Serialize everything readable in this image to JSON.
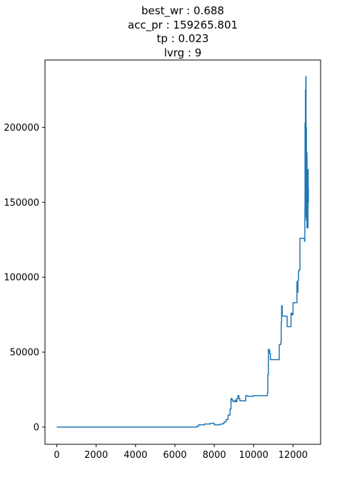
{
  "chart_data": {
    "type": "line",
    "title_lines": [
      "best_wr : 0.688",
      "acc_pr : 159265.801",
      "tp : 0.023",
      "lvrg : 9"
    ],
    "xlabel": "",
    "ylabel": "",
    "xlim": [
      -600,
      13400
    ],
    "ylim": [
      -11500,
      245000
    ],
    "x_ticks": [
      0,
      2000,
      4000,
      6000,
      8000,
      10000,
      12000
    ],
    "x_tick_labels": [
      "0",
      "2000",
      "4000",
      "6000",
      "8000",
      "10000",
      "12000"
    ],
    "y_ticks": [
      0,
      50000,
      100000,
      150000,
      200000
    ],
    "y_tick_labels": [
      "0",
      "50000",
      "100000",
      "150000",
      "200000"
    ],
    "grid": false,
    "series": [
      {
        "color": "#1f77b4",
        "x": [
          0,
          7000,
          7100,
          7200,
          7350,
          7500,
          7650,
          7800,
          7950,
          8000,
          8100,
          8300,
          8450,
          8500,
          8600,
          8700,
          8800,
          8850,
          8900,
          8950,
          9000,
          9050,
          9100,
          9150,
          9200,
          9250,
          9300,
          9500,
          9600,
          9650,
          9700,
          9900,
          10000,
          10400,
          10600,
          10700,
          10720,
          10750,
          10780,
          10800,
          10820,
          10850,
          10900,
          11000,
          11200,
          11300,
          11350,
          11380,
          11400,
          11420,
          11450,
          11480,
          11500,
          11600,
          11700,
          11750,
          11800,
          11850,
          11900,
          11950,
          12000,
          12050,
          12100,
          12150,
          12200,
          12230,
          12250,
          12280,
          12300,
          12350,
          12400,
          12450,
          12500,
          12550,
          12580,
          12600,
          12610,
          12620,
          12630,
          12640,
          12650,
          12660,
          12670,
          12680,
          12690,
          12700,
          12710,
          12720,
          12730,
          12740,
          12750,
          12760,
          12770,
          12780,
          12790,
          12800
        ],
        "y": [
          0,
          0,
          500,
          1500,
          1500,
          2000,
          2000,
          2500,
          2500,
          1500,
          1500,
          2000,
          2500,
          3500,
          5000,
          8000,
          12000,
          19000,
          18000,
          17000,
          17000,
          18000,
          17000,
          19000,
          21000,
          19000,
          17500,
          17500,
          21000,
          21000,
          20500,
          20500,
          21000,
          21000,
          21000,
          23000,
          35000,
          52000,
          50000,
          51000,
          49000,
          45000,
          45000,
          45000,
          45000,
          55000,
          55000,
          57000,
          70000,
          81000,
          74000,
          74000,
          74000,
          74000,
          67000,
          67000,
          67000,
          67000,
          76000,
          75000,
          83000,
          83000,
          83000,
          83000,
          97000,
          90000,
          98000,
          104000,
          105000,
          126000,
          126000,
          126000,
          126000,
          126000,
          124000,
          145000,
          203000,
          180000,
          225000,
          170000,
          234000,
          140000,
          200000,
          138000,
          160000,
          183000,
          133000,
          170000,
          150000,
          140000,
          133000,
          172000,
          150000,
          159000,
          159265,
          159265
        ]
      }
    ]
  }
}
